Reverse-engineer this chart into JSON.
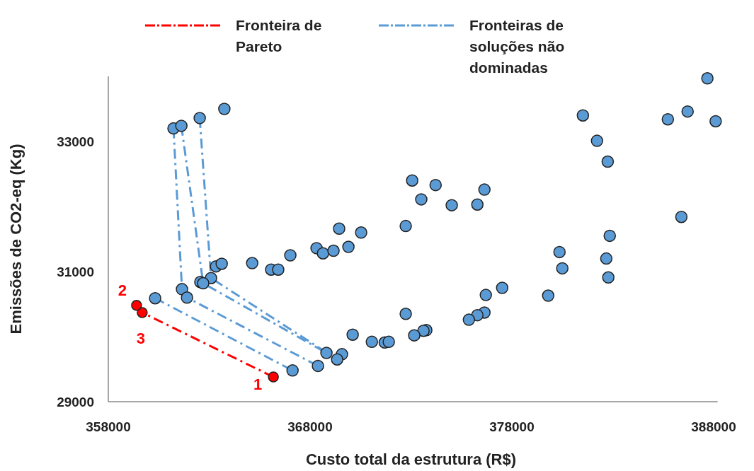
{
  "chart_data": {
    "type": "scatter",
    "xlabel": "Custo total da estrutura (R$)",
    "ylabel": "Emissões de CO2-eq (Kg)",
    "xlim": [
      358000,
      388200
    ],
    "ylim": [
      29000,
      34000
    ],
    "xticks": [
      358000,
      368000,
      378000,
      388000
    ],
    "yticks": [
      29000,
      31000,
      33000
    ],
    "grid": false,
    "legend": "top",
    "marker": "circle",
    "series": [
      {
        "type": "line",
        "name": "Fronteiras de soluções não dominadas",
        "color": "#5b9bd5",
        "line_style": "dashdot",
        "marker": "none",
        "x": [
          360320,
          367130
        ],
        "values": [
          30590,
          29480
        ]
      },
      {
        "type": "line",
        "color": "#5b9bd5",
        "line_style": "dashdot",
        "marker": "none",
        "x": [
          361230,
          361650,
          361900,
          368390
        ],
        "values": [
          33200,
          30730,
          30600,
          29550
        ]
      },
      {
        "type": "line",
        "color": "#5b9bd5",
        "line_style": "dashdot",
        "marker": "none",
        "x": [
          361620,
          362700,
          368810
        ],
        "values": [
          33240,
          30820,
          29750
        ]
      },
      {
        "type": "line",
        "color": "#5b9bd5",
        "line_style": "dashdot",
        "marker": "none",
        "x": [
          362530,
          363090,
          369340
        ],
        "values": [
          33360,
          30900,
          29650
        ]
      },
      {
        "color": "#5b9bd5",
        "x": [
          363750,
          362530,
          361230,
          361620,
          369440,
          370530,
          368320,
          368640,
          369160,
          369900,
          367020,
          365130,
          366070,
          366420,
          363340,
          363620,
          363090,
          362560,
          362700,
          361650,
          361900,
          360320,
          367130,
          368390,
          368810,
          369580,
          369340,
          370110,
          371060,
          371700,
          371900,
          387690,
          381520,
          385730,
          386710,
          388100,
          382220,
          382750,
          373060,
          374220,
          373510,
          375020,
          376290,
          376640,
          372740,
          386400,
          382850,
          380360,
          382680,
          380500,
          382780,
          377520,
          376710,
          379800,
          372740,
          376640,
          376290,
          375870,
          373760,
          373620,
          373160
        ],
        "values": [
          33500,
          33360,
          33200,
          33240,
          31660,
          31600,
          31360,
          31280,
          31320,
          31380,
          31250,
          31130,
          31030,
          31030,
          31080,
          31120,
          30900,
          30840,
          30820,
          30730,
          30600,
          30590,
          29480,
          29550,
          29750,
          29730,
          29650,
          30030,
          29920,
          29910,
          29920,
          33970,
          33400,
          33340,
          33460,
          33310,
          33010,
          32690,
          32400,
          32330,
          32110,
          32020,
          32030,
          32260,
          31700,
          31840,
          31550,
          31300,
          31200,
          31050,
          30910,
          30750,
          30640,
          30630,
          30350,
          30370,
          30330,
          30260,
          30100,
          30090,
          30020
        ]
      },
      {
        "type": "line",
        "name": "Fronteira de Pareto",
        "color": "#ff0000",
        "line_style": "dashdot",
        "marker": "circle",
        "x": [
          366180,
          359680,
          359400
        ],
        "values": [
          29380,
          30370,
          30480
        ]
      }
    ],
    "annotations": [
      {
        "text": "1",
        "x": 366180,
        "y": 29380
      },
      {
        "text": "2",
        "x": 359400,
        "y": 30480
      },
      {
        "text": "3",
        "x": 359680,
        "y": 30370
      }
    ]
  }
}
